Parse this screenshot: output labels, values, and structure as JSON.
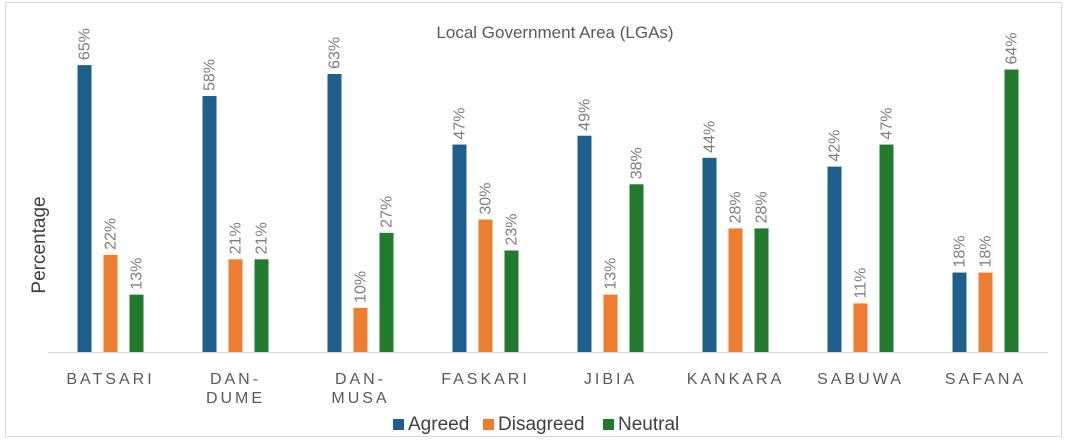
{
  "chart_data": {
    "type": "bar",
    "title": "Local Government Area (LGAs)",
    "y_label": "Percentage",
    "categories": [
      "BATSARI",
      "DAN- DUME",
      "DAN- MUSA",
      "FASKARI",
      "JIBIA",
      "KANKARA",
      "SABUWA",
      "SAFANA"
    ],
    "series": [
      {
        "name": "Agreed",
        "color": "#1f5f8b",
        "values": [
          65,
          58,
          63,
          47,
          49,
          44,
          42,
          18
        ],
        "value_labels": [
          "65%",
          "58%",
          "63%",
          "47%",
          "49%",
          "44%",
          "42%",
          "18%"
        ]
      },
      {
        "name": "Disagreed",
        "color": "#ed7d31",
        "values": [
          22,
          21,
          10,
          30,
          13,
          28,
          11,
          18
        ],
        "value_labels": [
          "22%",
          "21%",
          "10%",
          "30%",
          "13%",
          "28%",
          "11%",
          "18%"
        ]
      },
      {
        "name": "Neutral",
        "color": "#217a2e",
        "values": [
          13,
          21,
          27,
          23,
          38,
          28,
          47,
          64
        ],
        "value_labels": [
          "13%",
          "21%",
          "27%",
          "23%",
          "38%",
          "28%",
          "47%",
          "64%"
        ]
      }
    ],
    "ylim": [
      0,
      75
    ],
    "legend": "bottom"
  }
}
